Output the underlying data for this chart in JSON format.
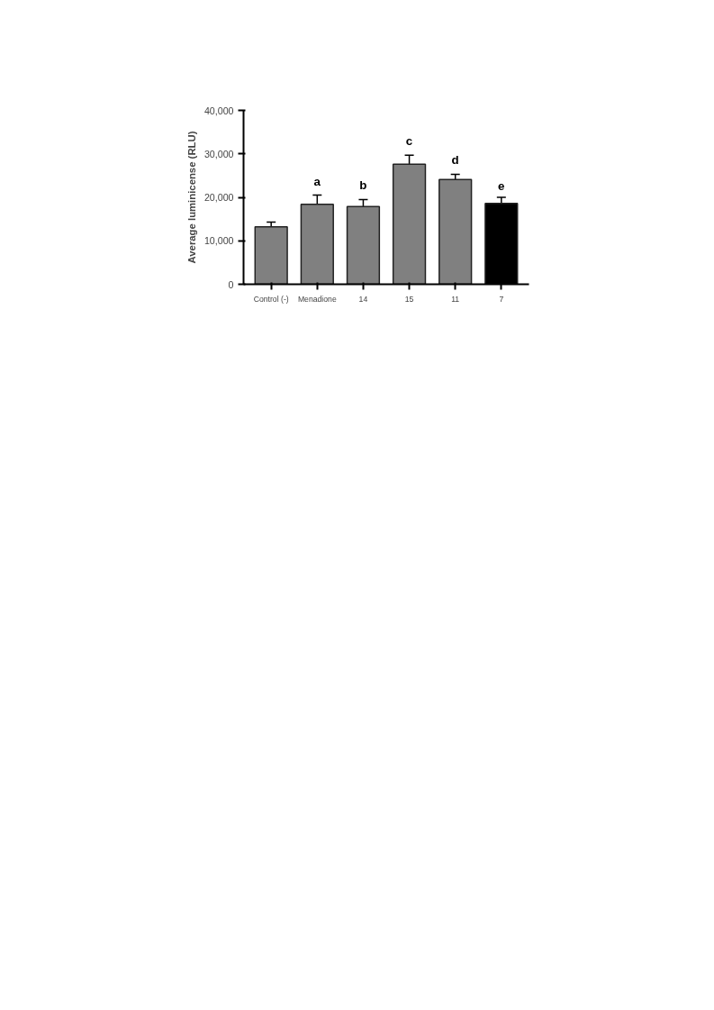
{
  "chart_data": {
    "type": "bar",
    "ylabel": "Average luminicense (RLU)",
    "categories": [
      "Control (-)",
      "Menadione",
      "14",
      "15",
      "11",
      "7"
    ],
    "values": [
      13200,
      18400,
      17900,
      27600,
      24100,
      18600
    ],
    "errors": [
      1100,
      2100,
      1600,
      2100,
      1200,
      1400
    ],
    "colors": [
      "#808080",
      "#808080",
      "#808080",
      "#808080",
      "#808080",
      "#000000"
    ],
    "ylim": [
      0,
      40000
    ],
    "yticks": [
      0,
      {
        "value": 10000,
        "label": "10,000"
      },
      {
        "value": 20000,
        "label": "20,000"
      },
      {
        "value": 30000,
        "label": "30,000"
      },
      {
        "value": 40000,
        "label": "40,000"
      }
    ],
    "grid": false,
    "annotations": [
      "a",
      "b",
      "c",
      "d",
      "e"
    ]
  }
}
